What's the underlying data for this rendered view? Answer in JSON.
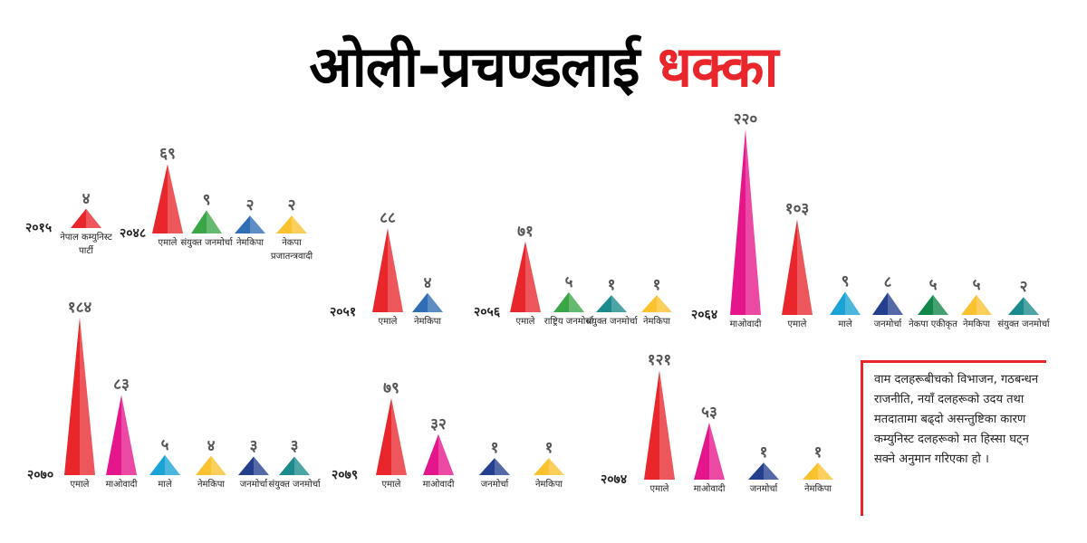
{
  "headline": [
    "ओली-प्रचण्डलाई",
    "धक्का"
  ],
  "note": "वाम दलहरूबीचको विभाजन, गठबन्धन राजनीति, नयाँ दलहरूको उदय तथा मतदातामा बढ्दो असन्तुष्टिका कारण कम्युनिस्ट दलहरूको मत हिस्सा घट्न सक्ने अनुमान गरिएका हो ।",
  "chart_data": [
    {
      "type": "triangle",
      "year": "२०१५",
      "categories": [
        "नेपाल कम्युनिस्ट पार्टी"
      ],
      "values": [
        4
      ],
      "value_labels": [
        "४"
      ],
      "colors": [
        "#e8262b"
      ]
    },
    {
      "type": "triangle",
      "year": "२०४८",
      "categories": [
        "एमाले",
        "संयुक्त जनमोर्चा",
        "नेमकिपा",
        "नेकपा प्रजातन्त्रवादी"
      ],
      "values": [
        69,
        9,
        2,
        2
      ],
      "value_labels": [
        "६९",
        "९",
        "२",
        "२"
      ],
      "colors": [
        "#e8262b",
        "#3aa648",
        "#2f6db5",
        "#f9c22e"
      ]
    },
    {
      "type": "triangle",
      "year": "२०५१",
      "categories": [
        "एमाले",
        "नेमकिपा"
      ],
      "values": [
        88,
        4
      ],
      "value_labels": [
        "८८",
        "४"
      ],
      "colors": [
        "#e8262b",
        "#2f6db5"
      ]
    },
    {
      "type": "triangle",
      "year": "२०५६",
      "categories": [
        "एमाले",
        "राष्ट्रिय जनमोर्चा",
        "संयुक्त जनमोर्चा",
        "नेमकिपा"
      ],
      "values": [
        71,
        5,
        1,
        1
      ],
      "value_labels": [
        "७१",
        "५",
        "१",
        "१"
      ],
      "colors": [
        "#e8262b",
        "#3aa648",
        "#1a8a8c",
        "#f9c22e"
      ]
    },
    {
      "type": "triangle",
      "year": "२०६४",
      "categories": [
        "माओवादी",
        "एमाले",
        "माले",
        "जनमोर्चा",
        "नेकपा एकीकृत",
        "नेमकिपा",
        "संयुक्त जनमोर्चा"
      ],
      "values": [
        220,
        103,
        9,
        8,
        5,
        5,
        2
      ],
      "value_labels": [
        "२२०",
        "१०३",
        "९",
        "८",
        "५",
        "५",
        "२"
      ],
      "colors": [
        "#e5168b",
        "#e8262b",
        "#1aa3d4",
        "#253f8f",
        "#12874a",
        "#f9c22e",
        "#1a8a8c"
      ]
    },
    {
      "type": "triangle",
      "year": "२०७०",
      "categories": [
        "एमाले",
        "माओवादी",
        "माले",
        "नेमकिपा",
        "जनमोर्चा",
        "संयुक्त जनमोर्चा"
      ],
      "values": [
        184,
        83,
        5,
        4,
        3,
        3
      ],
      "value_labels": [
        "१८४",
        "८३",
        "५",
        "४",
        "३",
        "३"
      ],
      "colors": [
        "#e8262b",
        "#e5168b",
        "#1aa3d4",
        "#f9c22e",
        "#253f8f",
        "#1a8a8c"
      ]
    },
    {
      "type": "triangle",
      "year": "२०७९",
      "categories": [
        "एमाले",
        "माओवादी",
        "जनमोर्चा",
        "नेमकिपा"
      ],
      "values": [
        79,
        32,
        1,
        1
      ],
      "value_labels": [
        "७९",
        "३२",
        "१",
        "१"
      ],
      "colors": [
        "#e8262b",
        "#e5168b",
        "#253f8f",
        "#f9c22e"
      ]
    },
    {
      "type": "triangle",
      "year": "२०७४",
      "categories": [
        "एमाले",
        "माओवादी",
        "जनमोर्चा",
        "नेमकिपा"
      ],
      "values": [
        121,
        53,
        1,
        1
      ],
      "value_labels": [
        "१२१",
        "५३",
        "१",
        "१"
      ],
      "colors": [
        "#e8262b",
        "#e5168b",
        "#253f8f",
        "#f9c22e"
      ]
    }
  ]
}
